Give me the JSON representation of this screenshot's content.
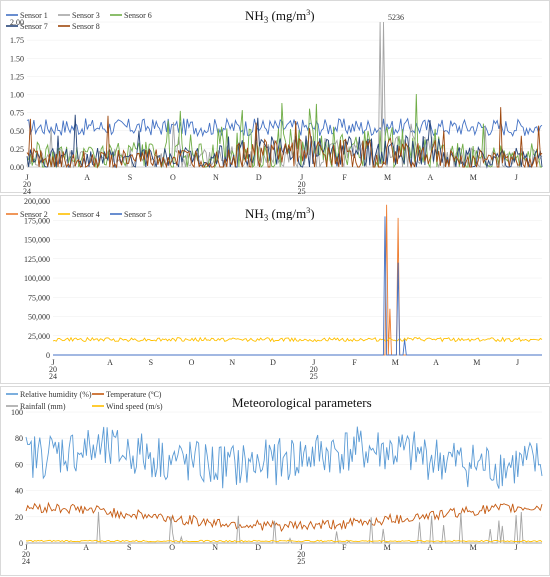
{
  "chart_data": [
    {
      "type": "line",
      "title_main": "NH",
      "title_sub": "3",
      "title_unit": " (mg/m",
      "title_sup": "3",
      "title_close": ")",
      "ylim": [
        0,
        2.0
      ],
      "y_ticks": [
        "0.00",
        "0.25",
        "0.50",
        "0.75",
        "1.00",
        "1.25",
        "1.50",
        "1.75",
        "2.00"
      ],
      "x_months": [
        "J",
        "A",
        "S",
        "O",
        "N",
        "D",
        "J",
        "F",
        "M",
        "A",
        "M",
        "J"
      ],
      "x_year_labels": {
        "first": [
          "20",
          "24"
        ],
        "seventh": [
          "20",
          "25"
        ]
      },
      "annotation": "5236",
      "series": [
        {
          "name": "Sensor 1",
          "color": "#4472C4",
          "base": 0.55,
          "amp": 0.12
        },
        {
          "name": "Sensor 3",
          "color": "#A5A5A5",
          "base": 0.12,
          "amp": 0.15
        },
        {
          "name": "Sensor 6",
          "color": "#70AD47",
          "base": 0.15,
          "amp": 0.2
        },
        {
          "name": "Sensor 7",
          "color": "#264478",
          "base": 0.12,
          "amp": 0.15
        },
        {
          "name": "Sensor 8",
          "color": "#9E480E",
          "base": 0.1,
          "amp": 0.15
        }
      ]
    },
    {
      "type": "line",
      "title_main": "NH",
      "title_sub": "3",
      "title_unit": " (mg/m",
      "title_sup": "3",
      "title_close": ")",
      "ylim": [
        0,
        200000
      ],
      "y_ticks": [
        "0",
        "25,000",
        "50,000",
        "75,000",
        "100,000",
        "125,000",
        "150,000",
        "175,000",
        "200,000"
      ],
      "x_months": [
        "J",
        "A",
        "S",
        "O",
        "N",
        "D",
        "J",
        "F",
        "M",
        "A",
        "M",
        "J"
      ],
      "x_year_labels": {
        "first": [
          "20",
          "24"
        ],
        "seventh": [
          "20",
          "25"
        ]
      },
      "series": [
        {
          "name": "Sensor 2",
          "color": "#ED7D31",
          "base": 0,
          "amp": 0
        },
        {
          "name": "Sensor 4",
          "color": "#FFC000",
          "base": 20000,
          "amp": 2500
        },
        {
          "name": "Sensor 5",
          "color": "#4472C4",
          "base": 0,
          "amp": 0
        }
      ]
    },
    {
      "type": "line",
      "title": "Meteorological parameters",
      "ylim": [
        0,
        100
      ],
      "y_ticks": [
        "0",
        "20",
        "40",
        "60",
        "80",
        "100"
      ],
      "x_months": [
        "J",
        "A",
        "S",
        "O",
        "N",
        "D",
        "J",
        "F",
        "M",
        "A",
        "M",
        "J"
      ],
      "x_year_labels": {
        "first": [
          "20",
          "24"
        ],
        "seventh": [
          "20",
          "25"
        ]
      },
      "series": [
        {
          "name": "Relative humidity (%)",
          "color": "#5B9BD5",
          "base": 65,
          "amp": 18
        },
        {
          "name": "Temperature (ºC)",
          "color": "#C55A11",
          "base": 20,
          "amp": 4
        },
        {
          "name": "Rainfall  (mm)",
          "color": "#A5A5A5",
          "base": 0,
          "amp": 0
        },
        {
          "name": "Wind speed  (m/s)",
          "color": "#FFC000",
          "base": 1.5,
          "amp": 0.6
        }
      ]
    }
  ]
}
